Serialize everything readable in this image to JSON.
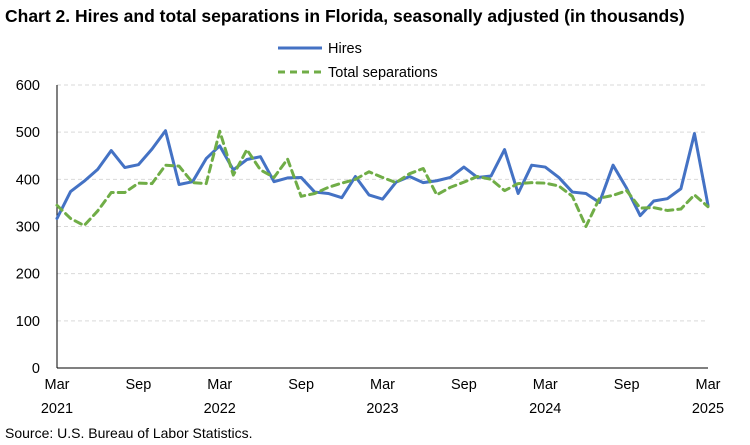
{
  "title": "Chart 2. Hires and total separations in Florida, seasonally adjusted (in thousands)",
  "source": "Source: U.S. Bureau of Labor Statistics.",
  "chart_data": {
    "type": "line",
    "title": "Chart 2. Hires and total separations in Florida, seasonally adjusted (in thousands)",
    "xlabel": "",
    "ylabel": "",
    "ylim": [
      0,
      600
    ],
    "yticks": [
      "0",
      "100",
      "200",
      "300",
      "400",
      "500",
      "600"
    ],
    "grid": true,
    "legend_position": "top-center",
    "x_start": "Mar 2021",
    "x_end": "Mar 2025",
    "x_ticks": [
      {
        "month": "Mar",
        "year": "2021"
      },
      {
        "month": "Sep",
        "year": ""
      },
      {
        "month": "Mar",
        "year": "2022"
      },
      {
        "month": "Sep",
        "year": ""
      },
      {
        "month": "Mar",
        "year": "2023"
      },
      {
        "month": "Sep",
        "year": ""
      },
      {
        "month": "Mar",
        "year": "2024"
      },
      {
        "month": "Sep",
        "year": ""
      },
      {
        "month": "Mar",
        "year": "2025"
      }
    ],
    "series": [
      {
        "name": "Hires",
        "color": "#4472C4",
        "dash": "solid",
        "values": [
          317,
          374,
          396,
          421,
          461,
          425,
          431,
          464,
          503,
          389,
          395,
          444,
          471,
          420,
          442,
          448,
          395,
          403,
          404,
          373,
          370,
          361,
          406,
          367,
          358,
          394,
          406,
          393,
          397,
          404,
          426,
          404,
          407,
          463,
          370,
          430,
          426,
          404,
          373,
          370,
          351,
          430,
          381,
          323,
          354,
          359,
          380,
          497,
          345
        ]
      },
      {
        "name": "Total separations",
        "color": "#70AD47",
        "dash": "dashed",
        "values": [
          345,
          317,
          302,
          333,
          372,
          372,
          392,
          391,
          430,
          428,
          393,
          391,
          502,
          409,
          463,
          420,
          404,
          443,
          364,
          370,
          383,
          392,
          400,
          416,
          404,
          393,
          412,
          423,
          367,
          383,
          394,
          406,
          400,
          376,
          391,
          393,
          392,
          386,
          364,
          300,
          360,
          366,
          376,
          339,
          340,
          334,
          337,
          367,
          342
        ]
      }
    ]
  }
}
